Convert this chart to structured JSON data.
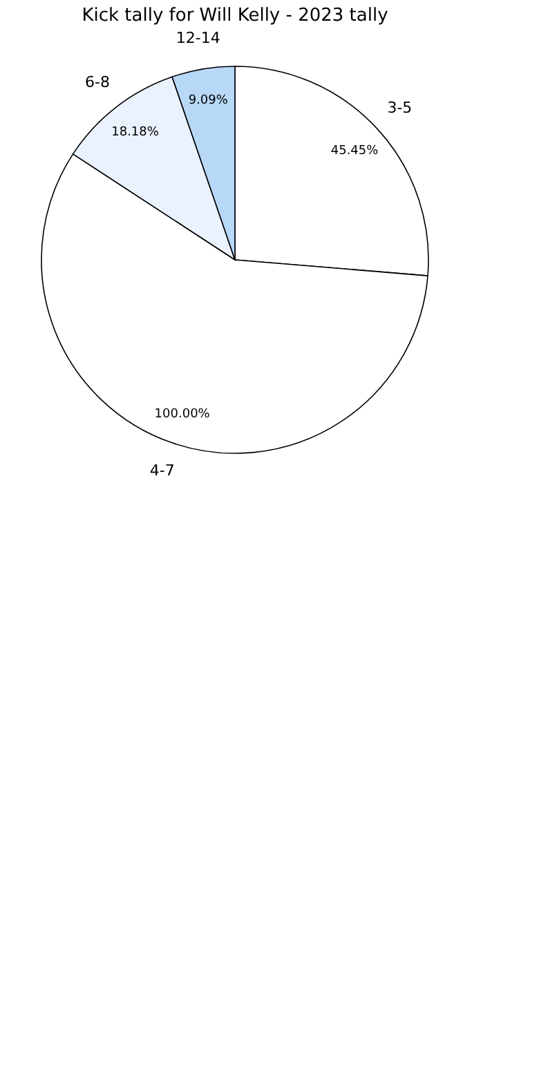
{
  "chart_data": {
    "type": "pie",
    "title": "Kick tally for Will Kelly - 2023 tally",
    "categories": [
      "3-5",
      "4-7",
      "6-8",
      "12-14"
    ],
    "values": [
      45.45,
      100.0,
      18.18,
      9.09
    ],
    "value_labels": [
      "45.45%",
      "100.00%",
      "18.18%",
      "9.09%"
    ],
    "colors": [
      "#ffffff",
      "#ffffff",
      "#eaf2fd",
      "#b8d8f8"
    ]
  }
}
